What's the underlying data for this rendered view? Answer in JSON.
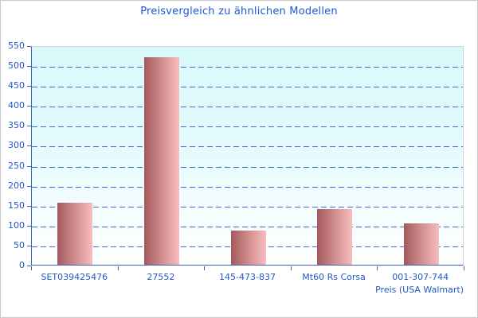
{
  "window": {
    "background_color": "#ffffff",
    "border_color": "#c9c9c9"
  },
  "chart_data": {
    "type": "bar",
    "title": "Preisvergleich zu ähnlichen Modellen",
    "xlabel": "Preis (USA Walmart)",
    "ylabel": "",
    "categories": [
      "SET039425476",
      "27552",
      "145-473-837",
      "Mt60 Rs Corsa",
      "001-307-744"
    ],
    "values": [
      156,
      520,
      85,
      140,
      103
    ],
    "ylim": [
      0,
      550
    ],
    "yticks": [
      0,
      50,
      100,
      150,
      200,
      250,
      300,
      350,
      400,
      450,
      500,
      550
    ],
    "grid": "horizontal-dashed",
    "legend": false,
    "colors": {
      "title_text": "#1e56d9",
      "tick_text": "#2457c8",
      "axis_line": "#3961c8",
      "gridline": "#3f6ad2",
      "bar_gradient_start": "#a4585b",
      "bar_gradient_mid": "#d08e8f",
      "bar_gradient_end": "#f8bdbd",
      "plot_bg_top": "#d9f9fb",
      "plot_bg_bottom": "#ffffff"
    }
  }
}
